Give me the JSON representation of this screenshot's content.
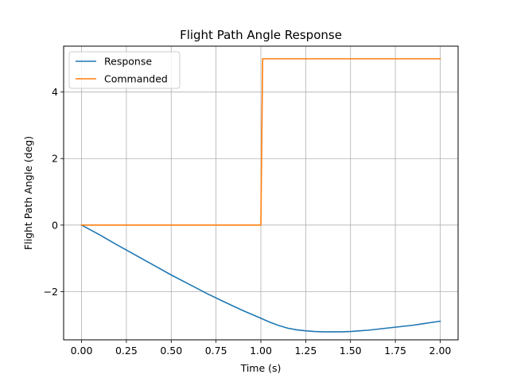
{
  "chart_data": {
    "type": "line",
    "title": "Flight Path Angle Response",
    "xlabel": "Time (s)",
    "ylabel": "Flight Path Angle (deg)",
    "xlim": [
      -0.1,
      2.1
    ],
    "ylim": [
      -3.45,
      5.38
    ],
    "xticks": [
      0.0,
      0.25,
      0.5,
      0.75,
      1.0,
      1.25,
      1.5,
      1.75,
      2.0
    ],
    "xtick_labels": [
      "0.00",
      "0.25",
      "0.50",
      "0.75",
      "1.00",
      "1.25",
      "1.50",
      "1.75",
      "2.00"
    ],
    "yticks": [
      -2,
      0,
      2,
      4
    ],
    "ytick_labels": [
      "−2",
      "0",
      "2",
      "4"
    ],
    "grid": true,
    "legend_position": "upper-left",
    "series": [
      {
        "name": "Response",
        "color": "#1f77b4",
        "x": [
          0.0,
          0.1,
          0.2,
          0.3,
          0.4,
          0.5,
          0.6,
          0.7,
          0.8,
          0.9,
          1.0,
          1.05,
          1.1,
          1.15,
          1.2,
          1.25,
          1.3,
          1.35,
          1.4,
          1.45,
          1.5,
          1.55,
          1.6,
          1.65,
          1.7,
          1.75,
          1.8,
          1.85,
          1.9,
          1.95,
          2.0
        ],
        "y": [
          0.0,
          -0.29,
          -0.6,
          -0.9,
          -1.2,
          -1.5,
          -1.78,
          -2.06,
          -2.32,
          -2.57,
          -2.8,
          -2.92,
          -3.02,
          -3.1,
          -3.15,
          -3.18,
          -3.2,
          -3.21,
          -3.21,
          -3.21,
          -3.2,
          -3.18,
          -3.16,
          -3.13,
          -3.1,
          -3.07,
          -3.04,
          -3.01,
          -2.97,
          -2.93,
          -2.89
        ]
      },
      {
        "name": "Commanded",
        "color": "#ff7f0e",
        "x": [
          0.0,
          1.0,
          1.01,
          2.0
        ],
        "y": [
          0.0,
          0.0,
          5.0,
          5.0
        ]
      }
    ]
  }
}
